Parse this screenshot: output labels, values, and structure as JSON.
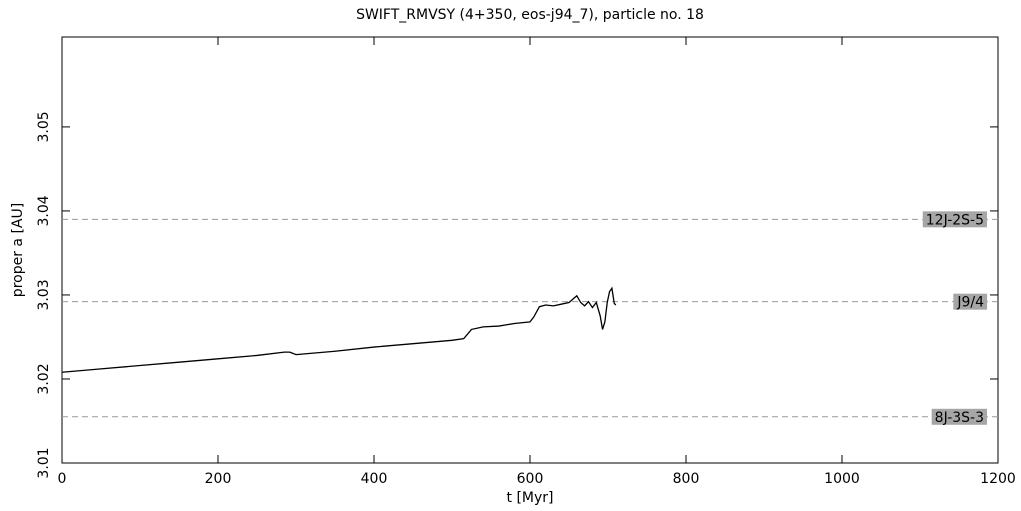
{
  "chart_data": {
    "type": "line",
    "title": "SWIFT_RMVSY (4+350, eos-j94_7), particle no. 18",
    "x_label": "t [Myr]",
    "y_label": "proper a [AU]",
    "xlim": [
      0,
      1200
    ],
    "xticks": [
      0,
      200,
      400,
      600,
      800,
      1000,
      1200
    ],
    "ylim": [
      3.01,
      3.0607
    ],
    "yticks": [
      3.01,
      3.02,
      3.03,
      3.04,
      3.05
    ],
    "series": [
      {
        "color": "#000000",
        "x": [
          0,
          50,
          100,
          150,
          200,
          250,
          285,
          292,
          300,
          350,
          400,
          450,
          500,
          515,
          525,
          540,
          560,
          580,
          600,
          605,
          612,
          620,
          630,
          640,
          650,
          660,
          665,
          670,
          675,
          680,
          685,
          690,
          693,
          696,
          699,
          702,
          705,
          708,
          710
        ],
        "values": [
          3.0208,
          3.0212,
          3.0216,
          3.022,
          3.0224,
          3.0228,
          3.0232,
          3.0232,
          3.0229,
          3.0233,
          3.0238,
          3.0242,
          3.0246,
          3.0248,
          3.0259,
          3.0262,
          3.0263,
          3.0266,
          3.0268,
          3.0274,
          3.0286,
          3.0288,
          3.0287,
          3.0289,
          3.0291,
          3.0299,
          3.0291,
          3.0287,
          3.0292,
          3.0285,
          3.0291,
          3.0275,
          3.0259,
          3.0268,
          3.0291,
          3.0304,
          3.0308,
          3.029,
          3.0288
        ]
      }
    ],
    "resonances": [
      {
        "label": "12J-2S-5",
        "value": 3.039
      },
      {
        "label": "J9/4",
        "value": 3.0292
      },
      {
        "label": "8J-3S-3",
        "value": 3.0155
      }
    ]
  }
}
